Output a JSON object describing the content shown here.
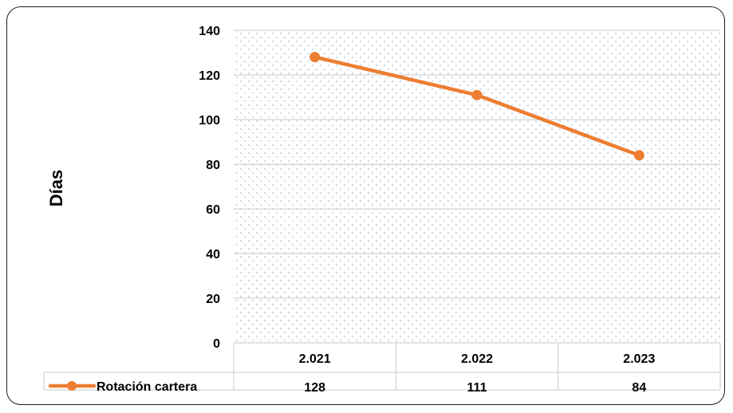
{
  "chart_data": {
    "type": "line",
    "categories": [
      "2.021",
      "2.022",
      "2.023"
    ],
    "series": [
      {
        "name": "Rotación cartera",
        "values": [
          128,
          111,
          84
        ],
        "color": "#ed7d31"
      }
    ],
    "ylabel": "Días",
    "xlabel": "",
    "ylim": [
      0,
      140
    ],
    "yticks": [
      0,
      20,
      40,
      60,
      80,
      100,
      120,
      140
    ],
    "grid": true,
    "data_table": true,
    "plot_fill": "dotted light blue"
  }
}
